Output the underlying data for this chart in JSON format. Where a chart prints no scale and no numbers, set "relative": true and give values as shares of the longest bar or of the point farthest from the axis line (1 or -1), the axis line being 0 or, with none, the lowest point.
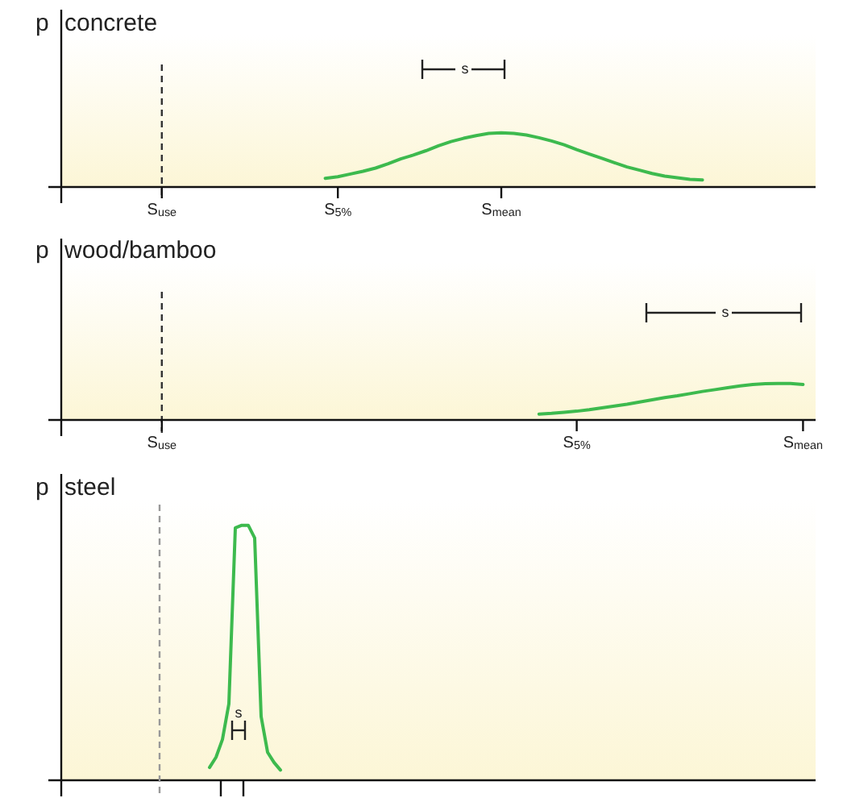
{
  "chart_data": [
    {
      "type": "line",
      "title": "concrete",
      "ylabel": "p",
      "relative": true,
      "marker": "none",
      "categories": [
        null,
        null,
        null,
        null,
        null,
        null,
        null,
        null,
        "S$_{use}$",
        null,
        null,
        null,
        null,
        null,
        null,
        null,
        null,
        null,
        null,
        null,
        null,
        null,
        "S$_{5%}$",
        null,
        null,
        null,
        null,
        null,
        null,
        null,
        null,
        null,
        null,
        null,
        null,
        "S$_{mean}$",
        null,
        null,
        null,
        null,
        null,
        null,
        null,
        null,
        null,
        null,
        null,
        null,
        null,
        null,
        null,
        null,
        null,
        null,
        null,
        null,
        null,
        null,
        null,
        null,
        null
      ],
      "series": [
        {
          "color": "#3dba4e",
          "values": [
            null,
            null,
            null,
            null,
            null,
            null,
            null,
            null,
            null,
            null,
            null,
            null,
            null,
            null,
            null,
            null,
            null,
            null,
            null,
            null,
            null,
            0.16,
            0.19,
            0.24,
            0.29,
            0.35,
            0.43,
            0.52,
            0.59,
            0.67,
            0.76,
            0.84,
            0.9,
            0.95,
            0.99,
            1.0,
            0.99,
            0.96,
            0.91,
            0.85,
            0.78,
            0.69,
            0.61,
            0.53,
            0.45,
            0.37,
            0.31,
            0.25,
            0.2,
            0.17,
            0.14,
            0.13,
            null,
            null,
            null,
            null,
            null,
            null,
            null,
            null,
            null
          ]
        }
      ],
      "ref_lines": [
        {
          "axis": "x",
          "value": "S$_{use}$",
          "color": "#333333",
          "line_style": "dashed"
        }
      ],
      "annotations": [
        "s"
      ]
    },
    {
      "type": "line",
      "title": "wood/bamboo",
      "ylabel": "p",
      "relative": true,
      "marker": "none",
      "categories": [
        null,
        null,
        null,
        null,
        null,
        null,
        null,
        null,
        "S$_{use}$",
        null,
        null,
        null,
        null,
        null,
        null,
        null,
        null,
        null,
        null,
        null,
        null,
        null,
        null,
        null,
        null,
        null,
        null,
        null,
        null,
        null,
        null,
        null,
        null,
        null,
        null,
        null,
        null,
        null,
        null,
        null,
        null,
        "S$_{5%}$",
        null,
        null,
        null,
        null,
        null,
        null,
        null,
        null,
        null,
        null,
        null,
        null,
        null,
        null,
        null,
        null,
        null,
        "S$_{mean}$",
        null
      ],
      "series": [
        {
          "color": "#3dba4e",
          "values": [
            null,
            null,
            null,
            null,
            null,
            null,
            null,
            null,
            null,
            null,
            null,
            null,
            null,
            null,
            null,
            null,
            null,
            null,
            null,
            null,
            null,
            null,
            null,
            null,
            null,
            null,
            null,
            null,
            null,
            null,
            null,
            null,
            null,
            null,
            null,
            null,
            null,
            null,
            0.16,
            0.18,
            0.21,
            0.24,
            0.28,
            0.33,
            0.38,
            0.43,
            0.49,
            0.55,
            0.61,
            0.66,
            0.72,
            0.78,
            0.83,
            0.88,
            0.93,
            0.97,
            0.99,
            1.0,
            1.0,
            0.97,
            null
          ]
        }
      ],
      "ref_lines": [
        {
          "axis": "x",
          "value": "S$_{use}$",
          "color": "#333333",
          "line_style": "dashed"
        }
      ],
      "annotations": [
        "s"
      ]
    },
    {
      "type": "line",
      "title": "steel",
      "ylabel": "p",
      "relative": true,
      "marker": "none",
      "categories": [
        null,
        null,
        null,
        null,
        null,
        null,
        null,
        null,
        null,
        null,
        null,
        null,
        null,
        null,
        null,
        null,
        null,
        null,
        null,
        null,
        null,
        null,
        null,
        null,
        null,
        null,
        null,
        null,
        null,
        null,
        null,
        null,
        null,
        null,
        null,
        null,
        null,
        null,
        null,
        null,
        null,
        null,
        null,
        null,
        null,
        null,
        null,
        null,
        null,
        null,
        null,
        null,
        null,
        null,
        null,
        null,
        null,
        null,
        null,
        null,
        null,
        null,
        null,
        null,
        null,
        null,
        null,
        null,
        null,
        null,
        null,
        null,
        null,
        null,
        null,
        null,
        null,
        null,
        null,
        null,
        null,
        null,
        null,
        null,
        null,
        null,
        null,
        null,
        null,
        null,
        null,
        null,
        null,
        null,
        null,
        null,
        null,
        null,
        null,
        null,
        null,
        null,
        null,
        null,
        null,
        null,
        null,
        null,
        null,
        null,
        null,
        null,
        null,
        null,
        null,
        null,
        null,
        null
      ],
      "series": [
        {
          "color": "#3dba4e",
          "values": [
            null,
            null,
            null,
            null,
            null,
            null,
            null,
            null,
            null,
            null,
            null,
            null,
            null,
            null,
            null,
            null,
            null,
            null,
            null,
            null,
            null,
            null,
            null,
            0.05,
            0.09,
            0.16,
            0.3,
            0.99,
            1.0,
            1.0,
            0.95,
            0.25,
            0.11,
            0.07,
            0.04,
            null,
            null,
            null,
            null,
            null,
            null,
            null,
            null,
            null,
            null,
            null,
            null,
            null,
            null,
            null,
            null,
            null,
            null,
            null,
            null,
            null,
            null,
            null,
            null,
            null,
            null,
            null,
            null,
            null,
            null,
            null,
            null,
            null,
            null,
            null,
            null,
            null,
            null,
            null,
            null,
            null,
            null,
            null,
            null,
            null,
            null,
            null,
            null,
            null,
            null,
            null,
            null,
            null,
            null,
            null,
            null,
            null,
            null,
            null,
            null,
            null,
            null,
            null,
            null,
            null,
            null,
            null,
            null,
            null,
            null,
            null,
            null,
            null,
            null,
            null,
            null,
            null,
            null,
            null,
            null,
            null,
            null,
            null
          ]
        }
      ],
      "annotations": [
        "s"
      ]
    }
  ]
}
